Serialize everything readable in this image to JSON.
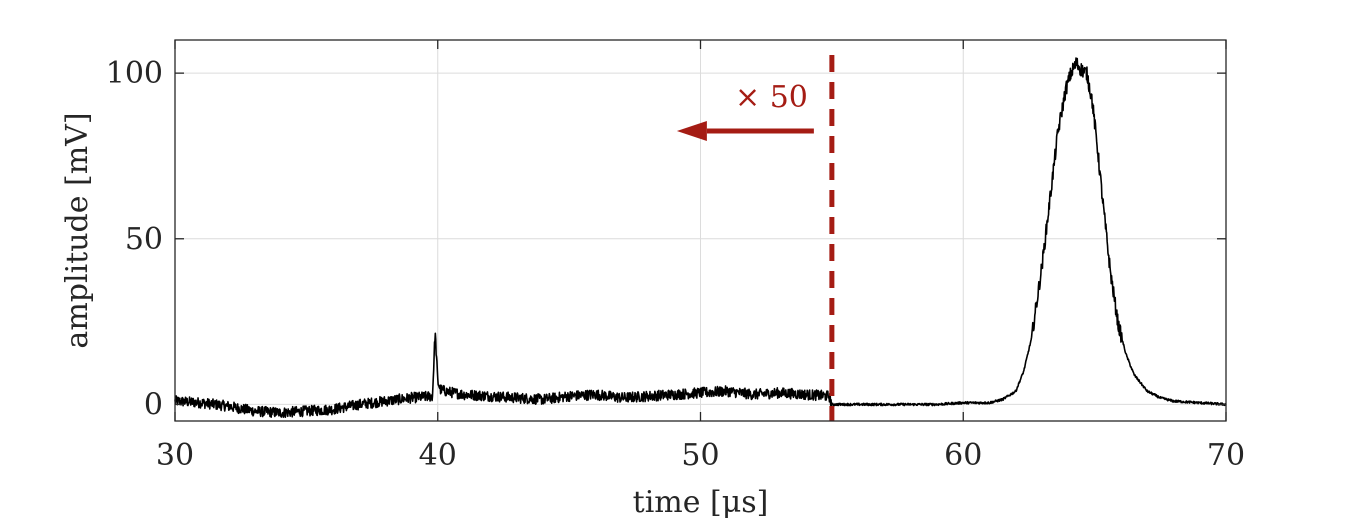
{
  "chart_data": {
    "type": "line",
    "xlabel": "time [μs]",
    "ylabel": "amplitude [mV]",
    "xlim": [
      30,
      70
    ],
    "ylim": [
      -5,
      110
    ],
    "xticks": [
      30,
      40,
      50,
      60,
      70
    ],
    "xtick_labels": [
      "30",
      "40",
      "50",
      "60",
      "70"
    ],
    "yticks": [
      0,
      50,
      100
    ],
    "ytick_labels": [
      "0",
      "50",
      "100"
    ],
    "grid": true,
    "colors": {
      "line": "#000000",
      "annotation": "#a51c14",
      "grid": "#dcdcdc",
      "axes": "#262626"
    },
    "annotation": {
      "text": "× 50",
      "marker_x": 55,
      "arrow_direction": "left"
    },
    "series": [
      {
        "x": [
          30,
          31,
          32,
          33,
          34,
          35,
          36,
          37,
          38,
          39,
          39.8,
          39.9,
          40.0,
          40.1,
          40.3,
          40.6,
          41,
          42,
          43,
          44,
          45,
          46,
          47,
          48,
          49,
          50,
          51,
          52,
          53,
          54,
          54.9,
          55.0,
          55.5,
          56,
          57,
          58,
          59,
          60,
          61,
          61.5,
          62,
          62.3,
          62.6,
          63,
          63.3,
          63.6,
          63.9,
          64.1,
          64.3,
          64.5,
          64.7,
          64.9,
          65.1,
          65.3,
          65.6,
          65.9,
          66.2,
          66.5,
          66.8,
          67,
          67.5,
          68,
          69,
          70
        ],
        "y": [
          1.0,
          0.5,
          -0.5,
          -2.0,
          -2.5,
          -2.0,
          -1.5,
          0.0,
          1.0,
          2.0,
          2.5,
          22.0,
          7.0,
          4.5,
          4.0,
          3.5,
          3.0,
          2.5,
          2.0,
          1.5,
          2.5,
          3.0,
          2.0,
          2.5,
          3.0,
          3.5,
          4.0,
          3.0,
          3.5,
          3.0,
          2.5,
          0.0,
          0.0,
          0.0,
          0.0,
          0.0,
          0.0,
          0.5,
          0.5,
          1.5,
          4.0,
          10.0,
          20.0,
          42.0,
          62.0,
          82.0,
          95.0,
          100.0,
          103.0,
          101.0,
          100.0,
          92.0,
          78.0,
          62.0,
          40.0,
          24.0,
          15.0,
          9.0,
          6.0,
          4.0,
          2.0,
          1.0,
          0.5,
          0.0
        ]
      }
    ]
  }
}
